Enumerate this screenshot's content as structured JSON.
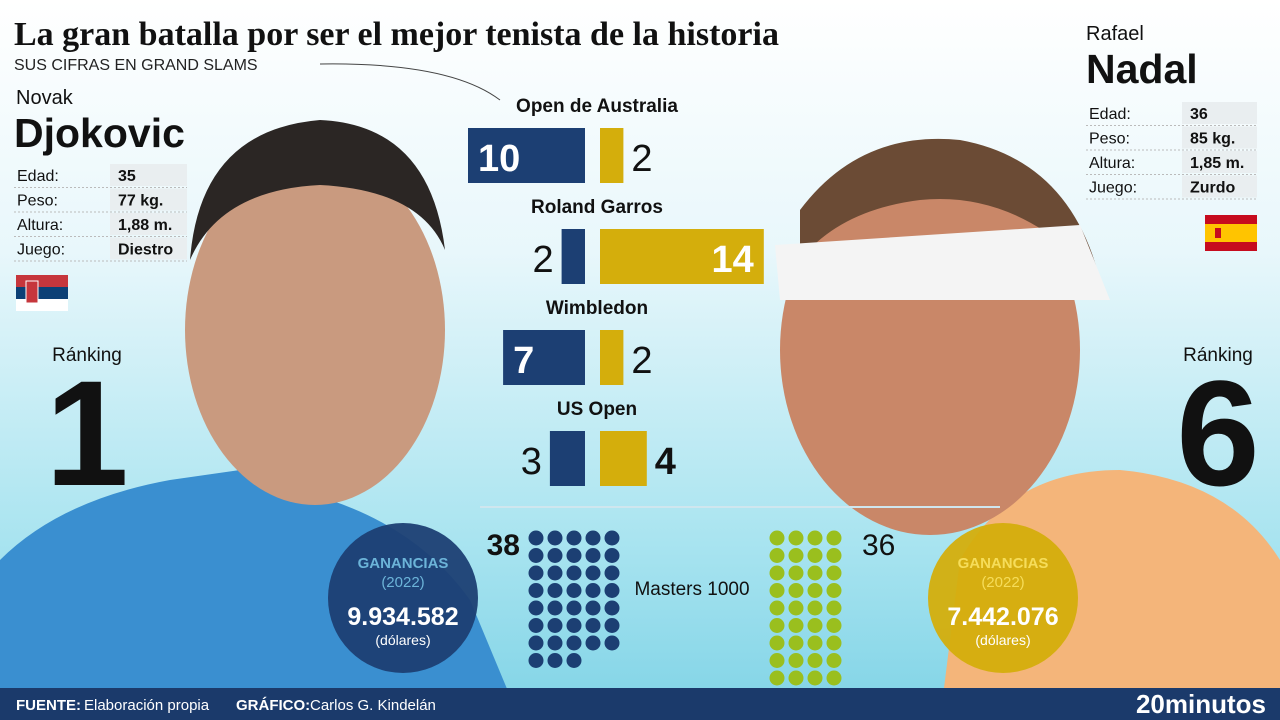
{
  "title": "La gran batalla por ser el mejor tenista de la historia",
  "subtitle": "SUS CIFRAS EN GRAND SLAMS",
  "colors": {
    "djokovic": "#1c3f73",
    "nadal": "#d4ae0c"
  },
  "players": [
    {
      "first_name": "Novak",
      "last_name": "Djokovic",
      "stats": [
        [
          "Edad:",
          "35"
        ],
        [
          "Peso:",
          "77 kg."
        ],
        [
          "Altura:",
          "1,88 m."
        ],
        [
          "Juego:",
          "Diestro"
        ]
      ],
      "ranking_label": "Ránking",
      "ranking": "1",
      "earnings_label": "GANANCIAS",
      "earnings_year": "(2022)",
      "earnings": "9.934.582",
      "earnings_unit": "(dólares)",
      "masters": 38
    },
    {
      "first_name": "Rafael",
      "last_name": "Nadal",
      "stats": [
        [
          "Edad:",
          "36"
        ],
        [
          "Peso:",
          "85 kg."
        ],
        [
          "Altura:",
          "1,85 m."
        ],
        [
          "Juego:",
          "Zurdo"
        ]
      ],
      "ranking_label": "Ránking",
      "ranking": "6",
      "earnings_label": "GANANCIAS",
      "earnings_year": "(2022)",
      "earnings": "7.442.076",
      "earnings_unit": "(dólares)",
      "masters": 36
    }
  ],
  "slams": [
    {
      "name": "Open de Australia",
      "djokovic": 10,
      "nadal": 2
    },
    {
      "name": "Roland Garros",
      "djokovic": 2,
      "nadal": 14
    },
    {
      "name": "Wimbledon",
      "djokovic": 7,
      "nadal": 2
    },
    {
      "name": "US Open",
      "djokovic": 3,
      "nadal": 4
    }
  ],
  "masters_label": "Masters 1000",
  "footer": {
    "source_label": "FUENTE:",
    "source": "Elaboración propia",
    "graphic_label": "GRÁFICO:",
    "graphic": "Carlos G. Kindelán",
    "brand": "20minutos"
  }
}
